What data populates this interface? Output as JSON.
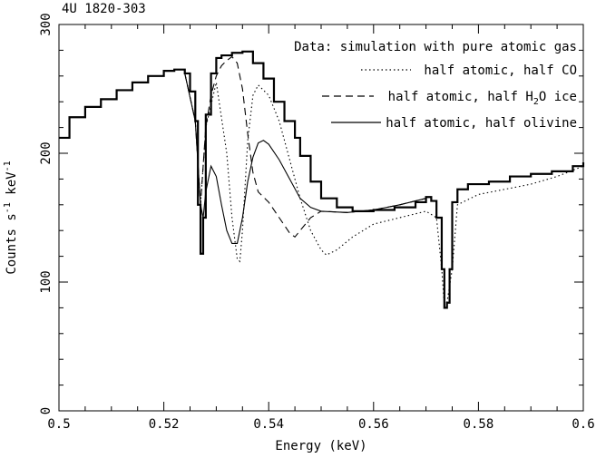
{
  "chart_data": {
    "type": "line",
    "title": "4U 1820-303",
    "xlabel": "Energy (keV)",
    "ylabel_main": "Counts s",
    "ylabel_sup1": "-1",
    "ylabel_mid": " keV",
    "ylabel_sup2": "-1",
    "xlim": [
      0.5,
      0.6
    ],
    "ylim": [
      0,
      300
    ],
    "x_ticks": [
      0.5,
      0.52,
      0.54,
      0.56,
      0.58,
      0.6
    ],
    "x_tick_labels": [
      "0.5",
      "0.52",
      "0.54",
      "0.56",
      "0.58",
      "0.6"
    ],
    "y_ticks": [
      0,
      100,
      200,
      300
    ],
    "y_tick_labels": [
      "0",
      "100",
      "200",
      "300"
    ],
    "legend_position": "top-right",
    "legend_lines": [
      {
        "text": "Data: simulation with pure atomic gas",
        "style": "none"
      },
      {
        "text": "half atomic, half CO",
        "style": "dotted"
      },
      {
        "text_pre": "half atomic, half H",
        "text_sub": "2",
        "text_post": "O ice",
        "style": "dashed"
      },
      {
        "text": "half atomic, half olivine",
        "style": "solid"
      }
    ],
    "series": [
      {
        "name": "Data: simulation with pure atomic gas",
        "style": "step",
        "x": [
          0.5,
          0.502,
          0.505,
          0.508,
          0.511,
          0.514,
          0.517,
          0.52,
          0.522,
          0.524,
          0.525,
          0.526,
          0.5265,
          0.527,
          0.5275,
          0.528,
          0.529,
          0.53,
          0.531,
          0.533,
          0.535,
          0.537,
          0.539,
          0.541,
          0.543,
          0.545,
          0.546,
          0.548,
          0.55,
          0.553,
          0.556,
          0.56,
          0.564,
          0.568,
          0.57,
          0.571,
          0.572,
          0.573,
          0.5735,
          0.574,
          0.5745,
          0.575,
          0.576,
          0.578,
          0.582,
          0.586,
          0.59,
          0.594,
          0.598,
          0.6
        ],
        "y": [
          212,
          228,
          236,
          242,
          249,
          255,
          260,
          264,
          265,
          262,
          248,
          225,
          160,
          122,
          150,
          230,
          262,
          274,
          276,
          278,
          279,
          270,
          258,
          240,
          225,
          212,
          198,
          178,
          165,
          158,
          155,
          156,
          158,
          162,
          166,
          163,
          150,
          110,
          80,
          84,
          110,
          162,
          172,
          176,
          178,
          182,
          184,
          186,
          190,
          193
        ]
      },
      {
        "name": "half atomic, half CO",
        "style": "dotted",
        "x": [
          0.524,
          0.526,
          0.527,
          0.528,
          0.53,
          0.532,
          0.533,
          0.534,
          0.5345,
          0.535,
          0.536,
          0.537,
          0.538,
          0.54,
          0.542,
          0.544,
          0.546,
          0.548,
          0.55,
          0.551,
          0.553,
          0.556,
          0.56,
          0.565,
          0.57,
          0.572,
          0.573,
          0.5735,
          0.574,
          0.575,
          0.576,
          0.58,
          0.585,
          0.59,
          0.595,
          0.6
        ],
        "y": [
          262,
          225,
          160,
          220,
          255,
          200,
          150,
          118,
          116,
          140,
          210,
          245,
          253,
          245,
          225,
          195,
          165,
          140,
          125,
          121,
          125,
          135,
          145,
          150,
          155,
          150,
          110,
          82,
          84,
          110,
          160,
          168,
          172,
          176,
          182,
          190
        ]
      },
      {
        "name": "half atomic, half H2O ice",
        "style": "dashed",
        "x": [
          0.524,
          0.526,
          0.527,
          0.528,
          0.529,
          0.53,
          0.531,
          0.532,
          0.533,
          0.534,
          0.535,
          0.536,
          0.537,
          0.538,
          0.54,
          0.542,
          0.544,
          0.545,
          0.546,
          0.548,
          0.55,
          0.555,
          0.56,
          0.565,
          0.57
        ],
        "y": [
          262,
          225,
          160,
          220,
          245,
          260,
          268,
          272,
          275,
          270,
          250,
          215,
          185,
          170,
          162,
          150,
          138,
          135,
          140,
          150,
          155,
          154,
          156,
          160,
          165
        ]
      },
      {
        "name": "half atomic, half olivine",
        "style": "solid",
        "x": [
          0.524,
          0.526,
          0.527,
          0.5275,
          0.528,
          0.529,
          0.53,
          0.531,
          0.532,
          0.533,
          0.534,
          0.535,
          0.536,
          0.537,
          0.538,
          0.539,
          0.54,
          0.542,
          0.544,
          0.546,
          0.548,
          0.55,
          0.555,
          0.56,
          0.565,
          0.57
        ],
        "y": [
          262,
          225,
          160,
          150,
          170,
          190,
          182,
          160,
          140,
          130,
          130,
          150,
          178,
          197,
          208,
          210,
          207,
          195,
          180,
          165,
          158,
          155,
          154,
          156,
          160,
          165
        ]
      }
    ]
  }
}
